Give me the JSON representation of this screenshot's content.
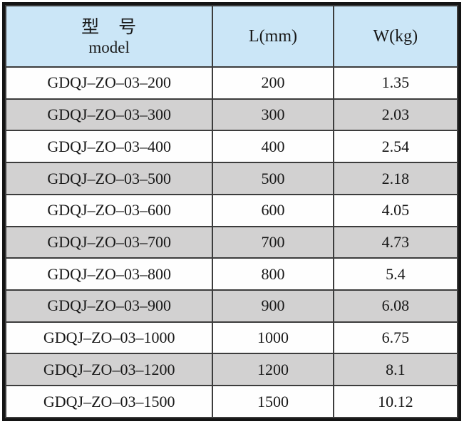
{
  "table": {
    "header": {
      "model_cn": "型　号",
      "model_en": "model",
      "col_length": "L(mm)",
      "col_weight": "W(kg)"
    },
    "rows": [
      {
        "model": "GDQJ–ZO–03–200",
        "length": "200",
        "weight": "1.35"
      },
      {
        "model": "GDQJ–ZO–03–300",
        "length": "300",
        "weight": "2.03"
      },
      {
        "model": "GDQJ–ZO–03–400",
        "length": "400",
        "weight": "2.54"
      },
      {
        "model": "GDQJ–ZO–03–500",
        "length": "500",
        "weight": "2.18"
      },
      {
        "model": "GDQJ–ZO–03–600",
        "length": "600",
        "weight": "4.05"
      },
      {
        "model": "GDQJ–ZO–03–700",
        "length": "700",
        "weight": "4.73"
      },
      {
        "model": "GDQJ–ZO–03–800",
        "length": "800",
        "weight": "5.4"
      },
      {
        "model": "GDQJ–ZO–03–900",
        "length": "900",
        "weight": "6.08"
      },
      {
        "model": "GDQJ–ZO–03–1000",
        "length": "1000",
        "weight": "6.75"
      },
      {
        "model": "GDQJ–ZO–03–1200",
        "length": "1200",
        "weight": "8.1"
      },
      {
        "model": "GDQJ–ZO–03–1500",
        "length": "1500",
        "weight": "10.12"
      }
    ]
  },
  "colors": {
    "header_bg": "#cbe6f7",
    "stripe_bg": "#d2d1d1",
    "row_bg": "#fefefe",
    "border_outer": "#141414",
    "grid": "#3c3c3c"
  }
}
